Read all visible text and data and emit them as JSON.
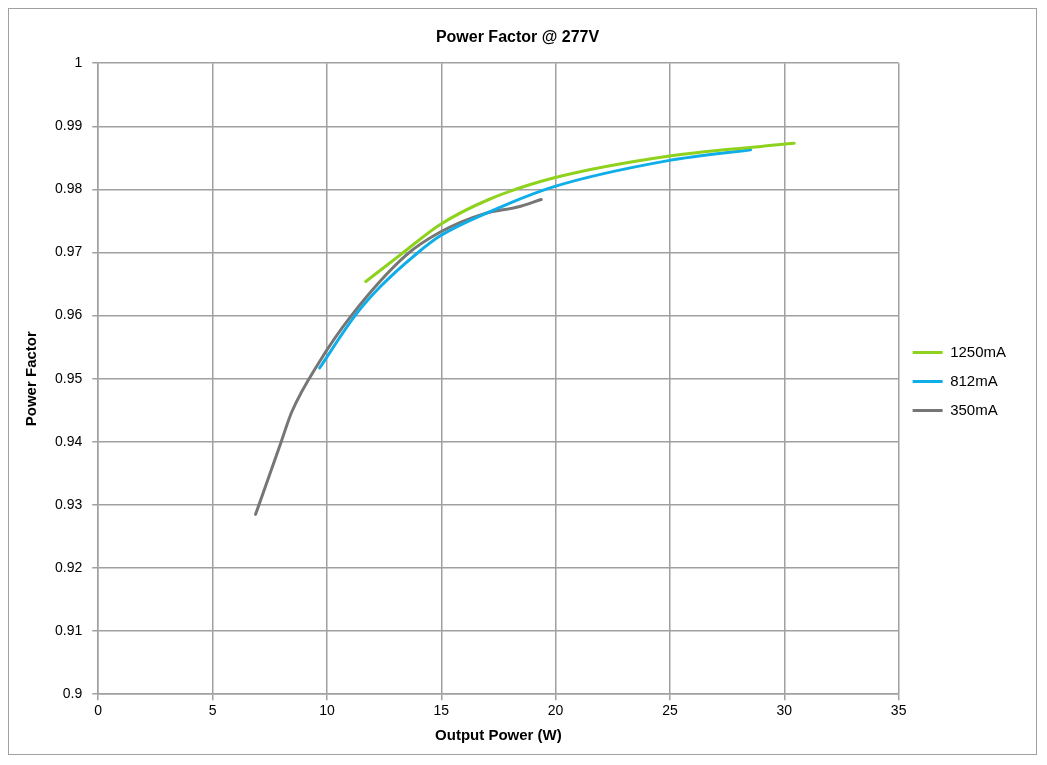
{
  "chart_data": {
    "type": "line",
    "title": "Power Factor @ 277V",
    "xlabel": "Output Power (W)",
    "ylabel": "Power Factor",
    "xlim": [
      0,
      35
    ],
    "xticks": [
      0,
      5,
      10,
      15,
      20,
      25,
      30,
      35
    ],
    "ylim": [
      0.9,
      1
    ],
    "yticks": [
      0.9,
      0.91,
      0.92,
      0.93,
      0.94,
      0.95,
      0.96,
      0.97,
      0.98,
      0.99,
      1
    ],
    "grid": true,
    "legend": "right",
    "marker": "none",
    "series": [
      {
        "name": "1250mA",
        "color": "#8fd21e",
        "x": [
          11.7,
          13.27,
          14.94,
          17.08,
          19.9,
          24.98,
          30.43
        ],
        "values": [
          0.9654,
          0.9698,
          0.9744,
          0.9784,
          0.9818,
          0.9853,
          0.9873
        ]
      },
      {
        "name": "812mA",
        "color": "#10aee8",
        "x": [
          9.68,
          11.23,
          12.34,
          13.92,
          14.94,
          17.08,
          19.9,
          24.98,
          28.53
        ],
        "values": [
          0.9517,
          0.96,
          0.9646,
          0.9698,
          0.9726,
          0.9764,
          0.9804,
          0.9846,
          0.9863
        ]
      },
      {
        "name": "350mA",
        "color": "#767676",
        "x": [
          6.88,
          7.99,
          8.47,
          9.64,
          11.07,
          13.44,
          14.94,
          16.92,
          18.34,
          19.37
        ],
        "values": [
          0.9285,
          0.9399,
          0.9448,
          0.9525,
          0.96,
          0.9695,
          0.9732,
          0.9762,
          0.9772,
          0.9784
        ]
      }
    ]
  }
}
